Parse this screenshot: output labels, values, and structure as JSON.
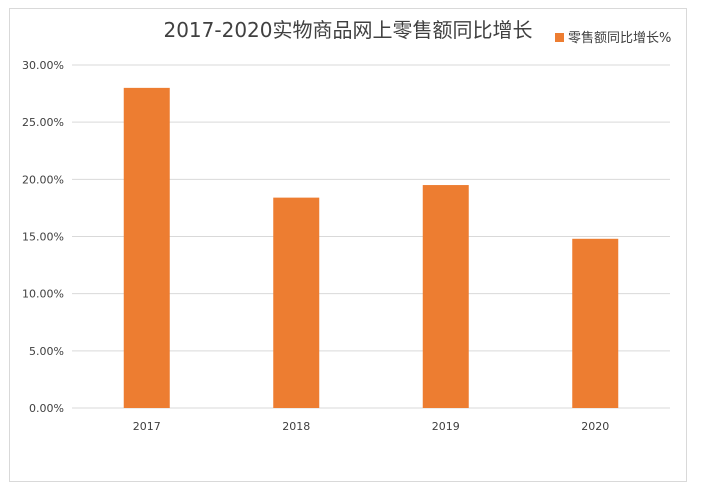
{
  "chart_data": {
    "type": "bar",
    "title": "2017-2020实物商品网上零售额同比增长",
    "categories": [
      "2017",
      "2018",
      "2019",
      "2020"
    ],
    "series": [
      {
        "name": "零售额同比增长%",
        "values": [
          0.28,
          0.184,
          0.195,
          0.148
        ],
        "color": "#ED7D31"
      }
    ],
    "ylim": [
      0,
      0.3
    ],
    "yticks": [
      0,
      0.05,
      0.1,
      0.15,
      0.2,
      0.25,
      0.3
    ],
    "ytick_labels": [
      "0.00%",
      "5.00%",
      "10.00%",
      "15.00%",
      "20.00%",
      "25.00%",
      "30.00%"
    ],
    "grid": true,
    "legend_position": "top-right",
    "gridline_color": "#d9d9d9"
  }
}
